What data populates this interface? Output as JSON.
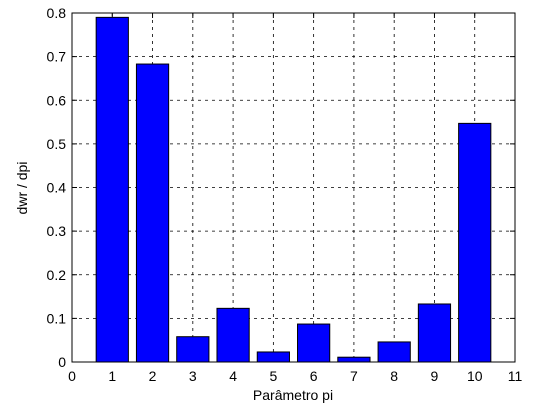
{
  "chart_data": {
    "type": "bar",
    "x": [
      1,
      2,
      3,
      4,
      5,
      6,
      7,
      8,
      9,
      10
    ],
    "values": [
      0.79,
      0.683,
      0.058,
      0.123,
      0.023,
      0.087,
      0.011,
      0.046,
      0.133,
      0.547
    ],
    "color": "#0000ff",
    "xlabel": "Parâmetro pi",
    "ylabel": "dwr / dpi",
    "xlim": [
      0,
      11
    ],
    "xticks": [
      0,
      1,
      2,
      3,
      4,
      5,
      6,
      7,
      8,
      9,
      10,
      11
    ],
    "ylim": [
      0,
      0.8
    ],
    "yticks": [
      0,
      0.1,
      0.2,
      0.3,
      0.4,
      0.5,
      0.6,
      0.7,
      0.8
    ],
    "grid": true
  }
}
